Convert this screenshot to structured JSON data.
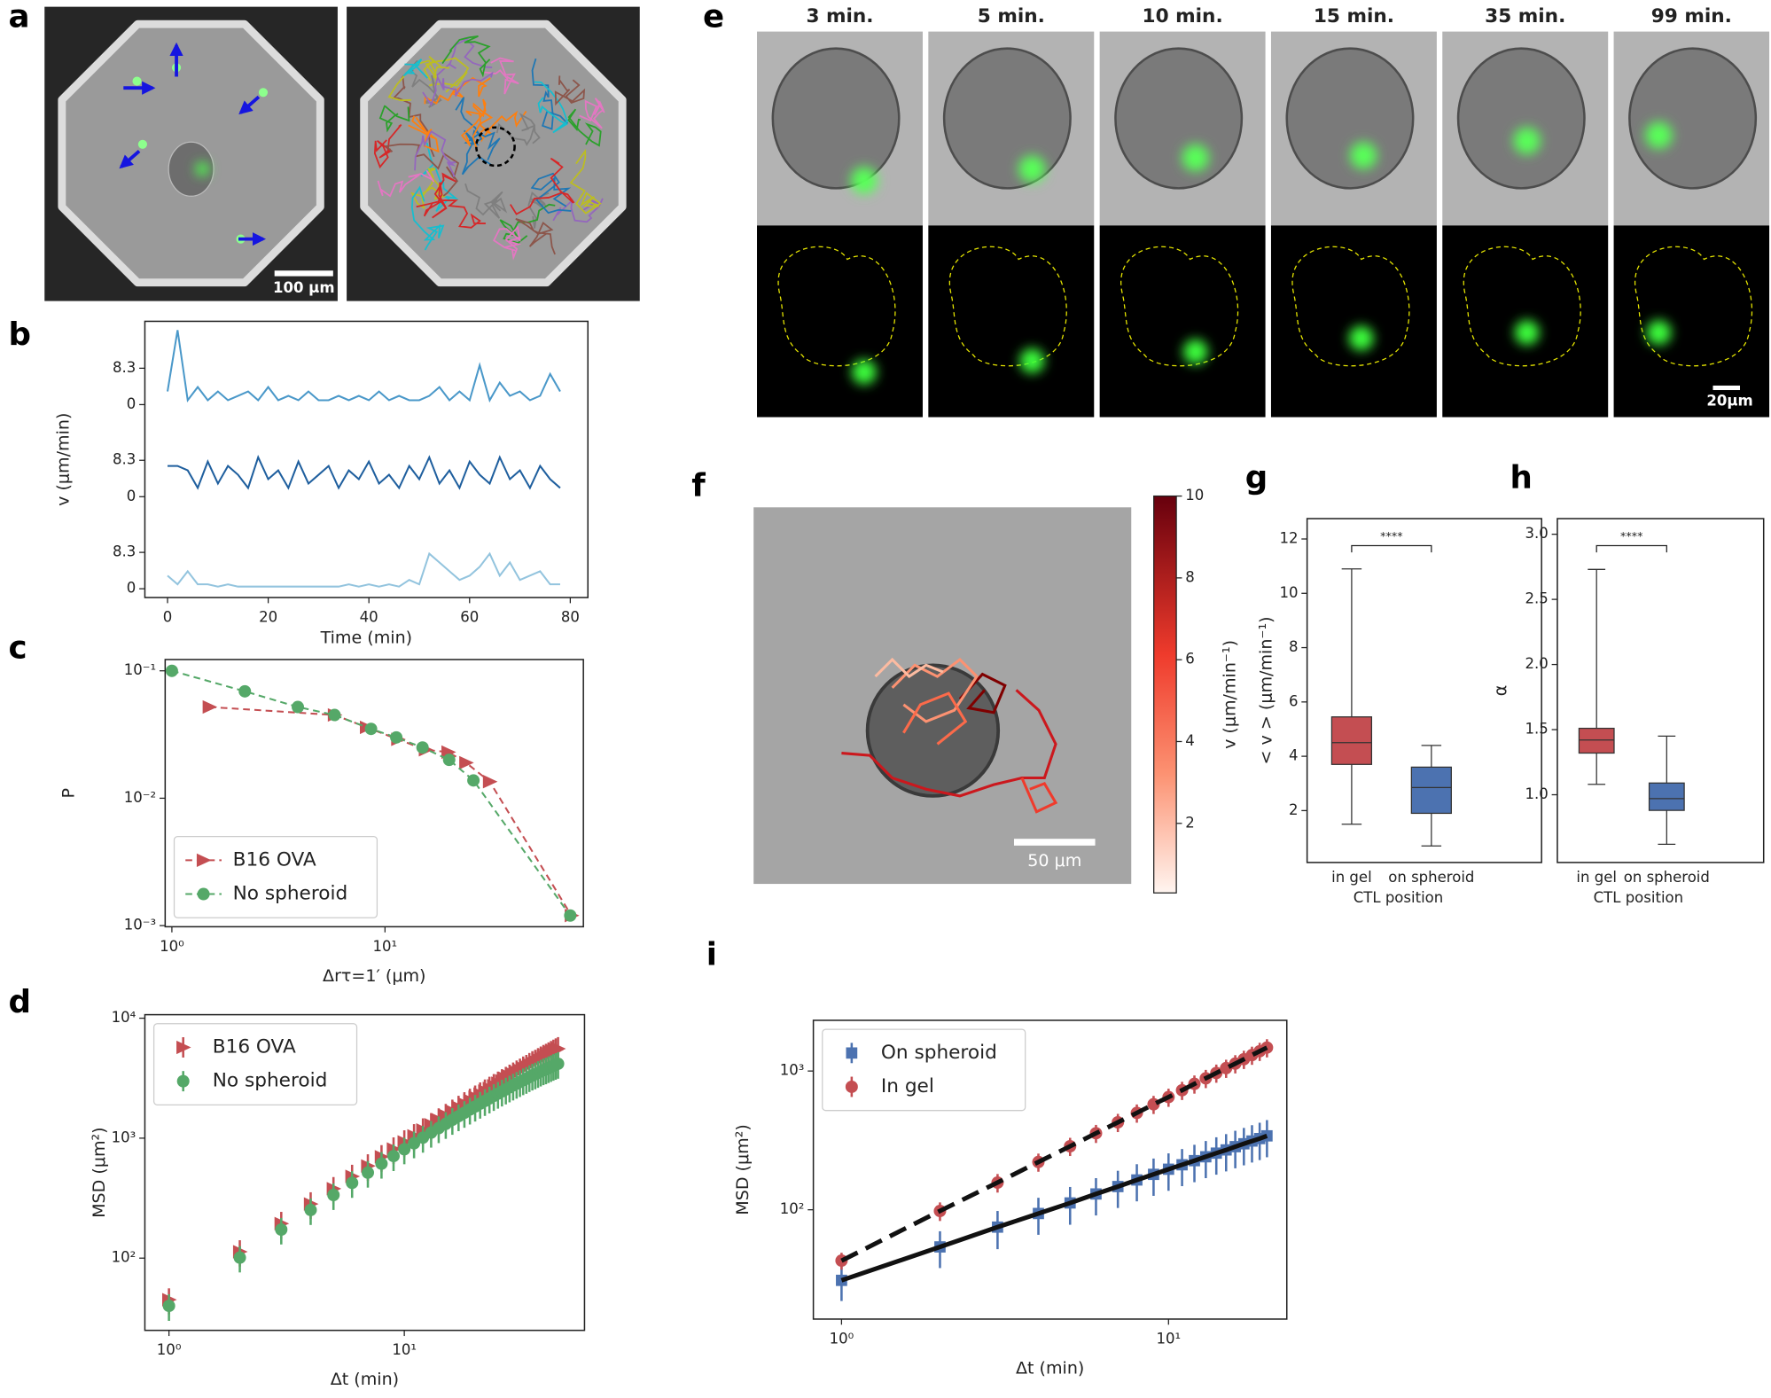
{
  "chart_data": [
    {
      "panel": "a",
      "type": "image",
      "scale_bar": "100 μm"
    },
    {
      "panel": "e",
      "type": "image",
      "frames": [
        "3 min.",
        "5 min.",
        "10 min.",
        "15 min.",
        "35 min.",
        "99 min."
      ],
      "scale_bar": "20μm"
    },
    {
      "panel": "f",
      "type": "image",
      "scale_bar": "50 μm",
      "colorbar": {
        "label": "v (μm/min⁻¹)",
        "lim": [
          0.3,
          10
        ],
        "ticks": [
          2,
          4,
          6,
          8,
          10
        ]
      }
    },
    {
      "panel": "b",
      "type": "line",
      "xlabel": "Time (min)",
      "ylabel": "v (μm/min)",
      "x": [
        0,
        2,
        4,
        6,
        8,
        10,
        12,
        14,
        16,
        18,
        20,
        22,
        24,
        26,
        28,
        30,
        32,
        34,
        36,
        38,
        40,
        42,
        44,
        46,
        48,
        50,
        52,
        54,
        56,
        58,
        60,
        62,
        64,
        66,
        68,
        70,
        72,
        74,
        76,
        78
      ],
      "xlim": [
        -4.5,
        83.5
      ],
      "xticks": [
        0,
        20,
        40,
        60,
        80
      ],
      "ylim": [
        -2,
        19
      ],
      "series": [
        {
          "color": "#4a98c9",
          "yticks": [
            0,
            8.3
          ],
          "values": [
            3,
            17,
            1,
            4,
            1,
            3,
            1,
            2,
            3,
            1,
            4,
            1,
            2,
            1,
            3,
            1,
            1,
            2,
            1,
            2,
            1,
            3,
            1,
            2,
            1,
            1,
            2,
            4,
            1,
            3,
            1,
            9,
            1,
            5,
            2,
            3,
            1,
            2,
            7,
            3
          ]
        },
        {
          "color": "#1f5f9e",
          "yticks": [
            0,
            8.3
          ],
          "values": [
            7,
            7,
            6,
            2,
            8,
            3,
            7,
            5,
            2,
            9,
            4,
            6,
            2,
            8,
            3,
            5,
            7,
            2,
            6,
            4,
            8,
            3,
            5,
            2,
            7,
            4,
            9,
            3,
            6,
            2,
            8,
            5,
            3,
            9,
            4,
            6,
            2,
            7,
            4,
            2
          ]
        },
        {
          "color": "#93c4de",
          "yticks": [
            0,
            8.3
          ],
          "values": [
            3,
            1,
            4,
            1,
            1,
            0.5,
            1,
            0.5,
            0.5,
            0.5,
            0.5,
            0.5,
            0.5,
            0.5,
            0.5,
            0.5,
            0.5,
            0.5,
            1,
            0.5,
            1,
            0.5,
            1,
            0.5,
            2,
            1,
            8,
            6,
            4,
            2,
            3,
            5,
            8,
            3,
            6,
            2,
            3,
            4,
            1,
            1
          ]
        }
      ]
    },
    {
      "panel": "c",
      "type": "line",
      "xlabel": "Δrτ=1′ (μm)",
      "ylabel": "P",
      "xscale": "log",
      "yscale": "log",
      "linestyle": "dashed",
      "legend": "lower left",
      "xlim": [
        0.93,
        85.3
      ],
      "ylim": [
        0.00098,
        0.1226
      ],
      "xticks": [
        {
          "value": 1,
          "label": "10⁰"
        },
        {
          "value": 10,
          "label": "10¹"
        }
      ],
      "yticks": [
        {
          "value": 0.001,
          "label": "10⁻³"
        },
        {
          "value": 0.01,
          "label": "10⁻²"
        },
        {
          "value": 0.1,
          "label": "10⁻¹"
        }
      ],
      "series": [
        {
          "name": "B16 OVA",
          "color": "#c44e52",
          "marker": "triangle",
          "x": [
            1.5,
            5.8,
            8.2,
            11.5,
            15.5,
            19.8,
            24,
            31,
            75
          ],
          "values": [
            0.052,
            0.045,
            0.036,
            0.029,
            0.024,
            0.023,
            0.019,
            0.0135,
            0.0012
          ]
        },
        {
          "name": "No spheroid",
          "color": "#55a868",
          "marker": "circle",
          "x": [
            1,
            2.2,
            3.9,
            5.8,
            8.6,
            11.3,
            15,
            20,
            26,
            74
          ],
          "values": [
            0.1,
            0.069,
            0.052,
            0.045,
            0.035,
            0.03,
            0.025,
            0.02,
            0.0138,
            0.0012
          ]
        }
      ]
    },
    {
      "panel": "d",
      "type": "scatter",
      "xlabel": "Δt (min)",
      "ylabel": "MSD (μm²)",
      "xscale": "log",
      "yscale": "log",
      "legend": "upper left",
      "xlim": [
        0.79,
        58.3
      ],
      "ylim": [
        25,
        10700
      ],
      "xticks": [
        {
          "value": 1,
          "label": "10⁰"
        },
        {
          "value": 10,
          "label": "10¹"
        }
      ],
      "yticks": [
        {
          "value": 100,
          "label": "10²"
        },
        {
          "value": 1000,
          "label": "10³"
        },
        {
          "value": 10000,
          "label": "10⁴"
        }
      ],
      "x": [
        1,
        2,
        3,
        4,
        5,
        6,
        7,
        8,
        9,
        10,
        11,
        12,
        13,
        14,
        15,
        16,
        17,
        18,
        19,
        20,
        21,
        22,
        23,
        24,
        25,
        26,
        27,
        28,
        29,
        30,
        31,
        32,
        33,
        34,
        35,
        36,
        37,
        38,
        39,
        40,
        41,
        42,
        43,
        44,
        45
      ],
      "series": [
        {
          "name": "B16 OVA",
          "color": "#c44e52",
          "marker": "triangle",
          "values": [
            45,
            113,
            194,
            283,
            379,
            480,
            587,
            700,
            812,
            930,
            1047,
            1170,
            1295,
            1418,
            1544,
            1676,
            1805,
            1933,
            2067,
            2198,
            2332,
            2468,
            2601,
            2738,
            2872,
            3007,
            3144,
            3281,
            3417,
            3553,
            3684,
            3836,
            3953,
            4103,
            4249,
            4362,
            4507,
            4647,
            4789,
            4895,
            5030,
            5167,
            5302,
            5432,
            5564
          ],
          "errors": [
            11,
            28,
            49,
            71,
            95,
            120,
            147,
            175,
            203,
            233,
            262,
            293,
            324,
            355,
            386,
            419,
            451,
            483,
            517,
            550,
            583,
            617,
            650,
            685,
            718,
            752,
            786,
            820,
            854,
            888,
            921,
            959,
            988,
            1026,
            1062,
            1091,
            1127,
            1162,
            1197,
            1224,
            1258,
            1292,
            1326,
            1358,
            1391
          ]
        },
        {
          "name": "No spheroid",
          "color": "#55a868",
          "marker": "circle",
          "values": [
            40,
            101,
            173,
            252,
            336,
            424,
            516,
            613,
            709,
            808,
            907,
            1010,
            1112,
            1214,
            1316,
            1423,
            1525,
            1628,
            1734,
            1835,
            1940,
            2044,
            2146,
            2251,
            2349,
            2451,
            2550,
            2651,
            2751,
            2846,
            2940,
            3046,
            3127,
            3233,
            3331,
            3407,
            3502,
            3597,
            3688,
            3754,
            3843,
            3927,
            4014,
            4090,
            4173
          ],
          "errors": [
            10,
            25,
            43,
            63,
            84,
            106,
            129,
            153,
            177,
            202,
            227,
            253,
            278,
            304,
            329,
            356,
            381,
            407,
            434,
            459,
            485,
            511,
            537,
            563,
            587,
            613,
            638,
            663,
            688,
            712,
            735,
            762,
            782,
            808,
            833,
            852,
            876,
            899,
            922,
            939,
            961,
            982,
            1004,
            1023,
            1043
          ]
        }
      ]
    },
    {
      "panel": "g",
      "type": "box",
      "xlabel": "CTL position",
      "ylabel": "< v >  (μm/min⁻¹)",
      "categories": [
        "in gel",
        "on spheroid"
      ],
      "colors": [
        "#c44e52",
        "#4c72b0"
      ],
      "significance": "****",
      "ylim": [
        0.09,
        12.75
      ],
      "yticks": [
        2,
        4,
        6,
        8,
        10,
        12
      ],
      "boxes": [
        {
          "whislo": 1.5,
          "q1": 3.7,
          "med": 4.5,
          "q3": 5.45,
          "whishi": 10.9
        },
        {
          "whislo": 0.7,
          "q1": 1.9,
          "med": 2.85,
          "q3": 3.6,
          "whishi": 4.4
        }
      ]
    },
    {
      "panel": "h",
      "type": "box",
      "xlabel": "CTL position",
      "ylabel": "α",
      "categories": [
        "in gel",
        "on spheroid"
      ],
      "colors": [
        "#c44e52",
        "#4c72b0"
      ],
      "significance": "****",
      "ylim": [
        0.48,
        3.12
      ],
      "yticks": [
        {
          "value": 1,
          "label": "1.0"
        },
        1.5,
        {
          "value": 2,
          "label": "2.0"
        },
        2.5,
        {
          "value": 3,
          "label": "3.0"
        }
      ],
      "boxes": [
        {
          "whislo": 1.08,
          "q1": 1.32,
          "med": 1.42,
          "q3": 1.51,
          "whishi": 2.73
        },
        {
          "whislo": 0.62,
          "q1": 0.88,
          "med": 0.97,
          "q3": 1.09,
          "whishi": 1.45
        }
      ]
    },
    {
      "panel": "i",
      "type": "scatter",
      "xlabel": "Δt (min)",
      "ylabel": "MSD (μm²)",
      "xscale": "log",
      "yscale": "log",
      "legend": "upper left",
      "xlim": [
        0.82,
        23
      ],
      "ylim": [
        16.3,
        2320
      ],
      "xticks": [
        {
          "value": 1,
          "label": "10⁰"
        },
        {
          "value": 10,
          "label": "10¹"
        }
      ],
      "yticks": [
        {
          "value": 100,
          "label": "10²"
        },
        {
          "value": 1000,
          "label": "10³"
        }
      ],
      "x": [
        1,
        2,
        3,
        4,
        5,
        6,
        7,
        8,
        9,
        10,
        11,
        12,
        13,
        14,
        15,
        16,
        17,
        18,
        19,
        20
      ],
      "series": [
        {
          "name": "On spheroid",
          "color": "#4c72b0",
          "marker": "square",
          "fit_line": "solid",
          "values": [
            31,
            54,
            75,
            94,
            112,
            130,
            147,
            164,
            180,
            196,
            211,
            226,
            241,
            256,
            270,
            285,
            299,
            313,
            326,
            341
          ],
          "errors": [
            9,
            16,
            23,
            28,
            34,
            39,
            44,
            49,
            54,
            59,
            63,
            68,
            72,
            77,
            81,
            86,
            90,
            94,
            98,
            102
          ]
        },
        {
          "name": "In gel",
          "color": "#c44e52",
          "marker": "circle",
          "fit_line": "dashed",
          "values": [
            43,
            98,
            157,
            221,
            287,
            356,
            427,
            499,
            576,
            649,
            727,
            808,
            886,
            968,
            1049,
            1131,
            1217,
            1303,
            1389,
            1475
          ],
          "errors": [
            6,
            15,
            24,
            33,
            43,
            53,
            64,
            75,
            86,
            97,
            109,
            121,
            133,
            145,
            157,
            170,
            183,
            195,
            208,
            221
          ]
        }
      ]
    }
  ]
}
